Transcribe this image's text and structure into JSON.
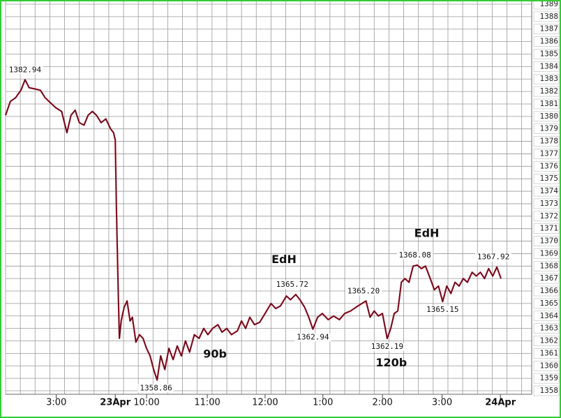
{
  "chart_data": {
    "type": "line",
    "color": "#b0102a",
    "x": [
      0,
      0.08,
      0.17,
      0.26,
      0.33,
      0.4,
      0.5,
      0.59,
      0.67,
      0.76,
      0.85,
      0.95,
      1.04,
      1.11,
      1.18,
      1.25,
      1.33,
      1.4,
      1.47,
      1.54,
      1.62,
      1.7,
      1.78,
      1.83,
      1.86,
      1.88,
      1.91,
      1.93,
      1.96,
      2.01,
      2.06,
      2.11,
      2.15,
      2.21,
      2.27,
      2.33,
      2.39,
      2.45,
      2.51,
      2.57,
      2.63,
      2.7,
      2.77,
      2.84,
      2.91,
      2.98,
      3.05,
      3.12,
      3.2,
      3.28,
      3.36,
      3.43,
      3.51,
      3.6,
      3.67,
      3.75,
      3.83,
      3.93,
      4.0,
      4.07,
      4.14,
      4.22,
      4.31,
      4.4,
      4.5,
      4.58,
      4.66,
      4.76,
      4.83,
      4.92,
      4.99,
      5.07,
      5.14,
      5.21,
      5.29,
      5.37,
      5.47,
      5.56,
      5.66,
      5.75,
      5.85,
      5.94,
      6.04,
      6.11,
      6.18,
      6.25,
      6.32,
      6.39,
      6.47,
      6.53,
      6.59,
      6.65,
      6.71,
      6.77,
      6.84,
      6.91,
      6.98,
      7.05,
      7.12,
      7.2,
      7.27,
      7.34,
      7.41,
      7.48,
      7.55,
      7.62,
      7.69,
      7.76,
      7.83,
      7.91,
      7.98,
      8.05,
      8.12,
      8.19,
      8.26,
      8.33,
      8.4
    ],
    "values": [
      1380.1,
      1381.2,
      1381.5,
      1382.1,
      1382.94,
      1382.3,
      1382.2,
      1382.1,
      1381.5,
      1381.1,
      1380.7,
      1380.4,
      1378.7,
      1380.1,
      1380.5,
      1379.5,
      1379.3,
      1380.1,
      1380.4,
      1380.1,
      1379.5,
      1379.8,
      1379.0,
      1378.7,
      1378.1,
      1372.5,
      1365.8,
      1362.2,
      1363.6,
      1364.7,
      1365.2,
      1363.6,
      1363.9,
      1361.9,
      1362.5,
      1362.2,
      1361.4,
      1360.8,
      1359.7,
      1358.86,
      1360.8,
      1359.7,
      1361.4,
      1360.5,
      1361.6,
      1360.8,
      1362.0,
      1361.1,
      1362.5,
      1362.2,
      1363.0,
      1362.5,
      1363.0,
      1363.3,
      1362.7,
      1363.0,
      1362.5,
      1362.8,
      1363.6,
      1363.0,
      1363.9,
      1363.3,
      1363.5,
      1364.2,
      1365.0,
      1364.6,
      1364.8,
      1365.6,
      1365.3,
      1365.72,
      1365.3,
      1364.7,
      1363.9,
      1362.94,
      1363.9,
      1364.2,
      1363.7,
      1364.0,
      1363.7,
      1364.2,
      1364.4,
      1364.7,
      1365.0,
      1365.2,
      1363.9,
      1364.4,
      1364.0,
      1364.2,
      1362.19,
      1363.0,
      1364.2,
      1364.4,
      1366.7,
      1367.0,
      1366.7,
      1368.0,
      1368.08,
      1367.8,
      1368.0,
      1367.0,
      1366.1,
      1366.4,
      1365.15,
      1366.4,
      1365.8,
      1366.7,
      1366.4,
      1367.0,
      1366.7,
      1367.5,
      1367.2,
      1367.5,
      1367.0,
      1367.8,
      1367.2,
      1367.92,
      1367.0
    ],
    "xlim": [
      0,
      8.92
    ],
    "xticks": [
      {
        "value": 0.86,
        "label": "3:00"
      },
      {
        "value": 1.86,
        "label": "23Apr"
      },
      {
        "value": 2.39,
        "label": "10:00"
      },
      {
        "value": 3.42,
        "label": "11:00"
      },
      {
        "value": 4.4,
        "label": "12:00"
      },
      {
        "value": 5.38,
        "label": "1:00"
      },
      {
        "value": 6.39,
        "label": "2:00"
      },
      {
        "value": 7.4,
        "label": "3:00"
      },
      {
        "value": 8.39,
        "label": "24Apr"
      }
    ],
    "ylim": [
      1358,
      1389
    ],
    "yticks": [
      1358,
      1359,
      1360,
      1361,
      1362,
      1363,
      1364,
      1365,
      1366,
      1367,
      1368,
      1369,
      1370,
      1371,
      1372,
      1373,
      1374,
      1375,
      1376,
      1377,
      1378,
      1379,
      1380,
      1381,
      1382,
      1383,
      1384,
      1385,
      1386,
      1387,
      1388,
      1389
    ],
    "grid": true,
    "xgrid_step": 0.25,
    "price_labels": [
      {
        "text": "1382.94",
        "x": 0.33,
        "y": 1382.94,
        "side": "above"
      },
      {
        "text": "1358.86",
        "x": 2.55,
        "y": 1358.86,
        "side": "below"
      },
      {
        "text": "1365.72",
        "x": 4.86,
        "y": 1365.72,
        "side": "above"
      },
      {
        "text": "1362.94",
        "x": 5.21,
        "y": 1362.94,
        "side": "below"
      },
      {
        "text": "1365.20",
        "x": 6.07,
        "y": 1365.2,
        "side": "above"
      },
      {
        "text": "1362.19",
        "x": 6.47,
        "y": 1362.19,
        "side": "below"
      },
      {
        "text": "1368.08",
        "x": 6.94,
        "y": 1368.08,
        "side": "above"
      },
      {
        "text": "1365.15",
        "x": 7.41,
        "y": 1365.15,
        "side": "below"
      },
      {
        "text": "1367.92",
        "x": 8.27,
        "y": 1367.92,
        "side": "above"
      }
    ],
    "notes": [
      {
        "text": "EdH",
        "x": 4.72,
        "y": 1368.5
      },
      {
        "text": "EdH",
        "x": 7.14,
        "y": 1370.6
      },
      {
        "text": "90b",
        "x": 3.55,
        "y": 1360.9
      },
      {
        "text": "120b",
        "x": 6.54,
        "y": 1360.2
      }
    ]
  }
}
